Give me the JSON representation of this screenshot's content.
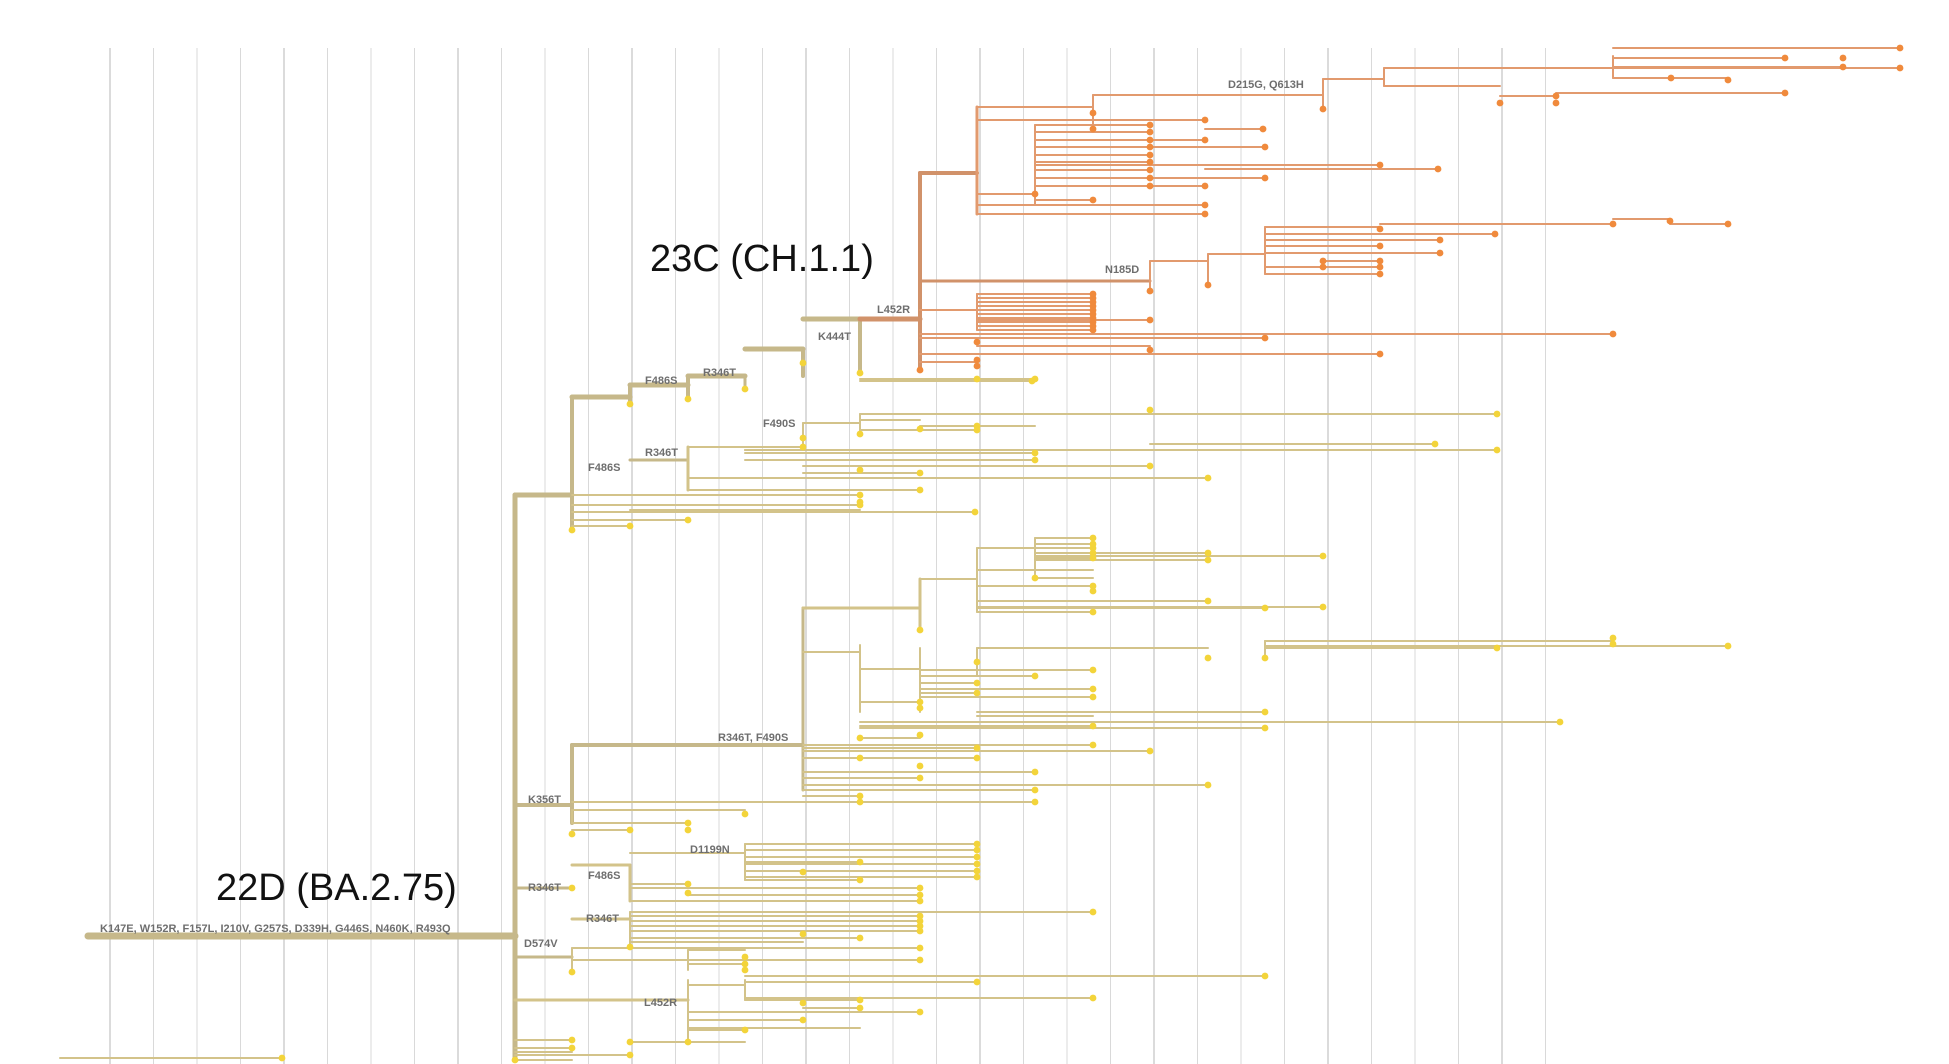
{
  "tree": {
    "clade_labels": {
      "clade_22d": "22D (BA.2.75)",
      "clade_23c": "23C (CH.1.1)"
    },
    "mutation_labels": {
      "root": "K147E, W152R, F157L, I210V, G257S, D339H, G446S, N460K, R493Q",
      "f486s_a": "F486S",
      "r346t_a": "R346T",
      "k444t": "K444T",
      "l452r_a": "L452R",
      "d215g": "D215G, Q613H",
      "n185d": "N185D",
      "f490s": "F490S",
      "r346t_b": "R346T",
      "f486s_b": "F486S",
      "r346t_f490s": "R346T, F490S",
      "k356t": "K356T",
      "d1199n": "D1199N",
      "r346t_c": "R346T",
      "f486s_c": "F486S",
      "r346t_d": "R346T",
      "d574v": "D574V",
      "l452r_b": "L452R"
    },
    "colors": {
      "trunk": "#c6b88a",
      "yellow_branch": "#d3c38a",
      "orange_branch": "#e29a6e",
      "orange_trunk": "#d1926a",
      "yellow_tip": "#f3d43a",
      "orange_tip": "#f08a3c",
      "grid": "#d9d9d9"
    }
  }
}
